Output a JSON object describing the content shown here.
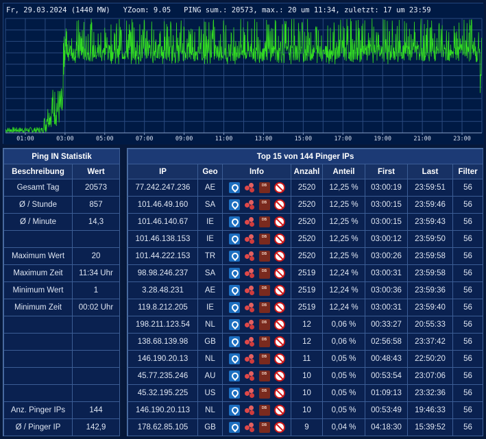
{
  "chart": {
    "header_text": "Fr, 29.03.2024 (1440 MW)   YZoom: 9.05   PING sum.: 20573, max.: 20 um 11:34, zuletzt: 17 um 23:59",
    "colors": {
      "background": "#001a44",
      "grid": "#2a4a80",
      "line": "#33dd22",
      "tick_label": "#d8e0f0"
    },
    "chart_data": {
      "type": "line",
      "title": "",
      "xlabel": "",
      "ylabel": "",
      "x_ticks": [
        "01:00",
        "03:00",
        "05:00",
        "07:00",
        "09:00",
        "11:00",
        "13:00",
        "15:00",
        "17:00",
        "19:00",
        "21:00",
        "23:00"
      ],
      "x_range_minutes": [
        0,
        1440
      ],
      "ylim": [
        0,
        20
      ],
      "grid": true,
      "series": [
        {
          "segments": [
            {
              "from": "00:00",
              "to": "01:55",
              "min": 0,
              "max": 1
            },
            {
              "from": "01:55",
              "to": "02:05",
              "min": 0,
              "max": 3
            },
            {
              "from": "02:05",
              "to": "02:20",
              "min": 1,
              "max": 5
            },
            {
              "from": "02:20",
              "to": "02:55",
              "min": 1,
              "max": 8
            },
            {
              "from": "03:00",
              "to": "23:55",
              "min": 12,
              "max": 20,
              "typical": 14
            },
            {
              "from": "23:55",
              "to": "23:59",
              "min": 2,
              "max": 17
            }
          ]
        }
      ]
    }
  },
  "stats": {
    "title": "Ping IN Statistik",
    "headers": [
      "Beschreibung",
      "Wert"
    ],
    "rows": [
      [
        "Gesamt Tag",
        "20573"
      ],
      [
        "Ø / Stunde",
        "857"
      ],
      [
        "Ø / Minute",
        "14,3"
      ],
      [
        "",
        ""
      ],
      [
        "Maximum Wert",
        "20"
      ],
      [
        "Maximum Zeit",
        "11:34 Uhr"
      ],
      [
        "Minimum Wert",
        "1"
      ],
      [
        "Minimum Zeit",
        "00:02 Uhr"
      ],
      [
        "",
        ""
      ],
      [
        "",
        ""
      ],
      [
        "",
        ""
      ],
      [
        "",
        ""
      ],
      [
        "",
        ""
      ],
      [
        "Anz. Pinger IPs",
        "144"
      ],
      [
        "Ø / Pinger IP",
        "142,9"
      ]
    ]
  },
  "pinger": {
    "title": "Top 15 von 144 Pinger IPs",
    "headers": [
      "IP",
      "Geo",
      "Info",
      "Anzahl",
      "Anteil",
      "First",
      "Last",
      "Filter"
    ],
    "info_icons": [
      "location-icon",
      "network-icon",
      "database-icon",
      "block-icon"
    ],
    "db_icon_text": "DB",
    "rows": [
      [
        "77.242.247.236",
        "AE",
        "2520",
        "12,25 %",
        "03:00:19",
        "23:59:51",
        "56"
      ],
      [
        "101.46.49.160",
        "SA",
        "2520",
        "12,25 %",
        "03:00:15",
        "23:59:46",
        "56"
      ],
      [
        "101.46.140.67",
        "IE",
        "2520",
        "12,25 %",
        "03:00:15",
        "23:59:43",
        "56"
      ],
      [
        "101.46.138.153",
        "IE",
        "2520",
        "12,25 %",
        "03:00:12",
        "23:59:50",
        "56"
      ],
      [
        "101.44.222.153",
        "TR",
        "2520",
        "12,25 %",
        "03:00:26",
        "23:59:58",
        "56"
      ],
      [
        "98.98.246.237",
        "SA",
        "2519",
        "12,24 %",
        "03:00:31",
        "23:59:58",
        "56"
      ],
      [
        "3.28.48.231",
        "AE",
        "2519",
        "12,24 %",
        "03:00:36",
        "23:59:36",
        "56"
      ],
      [
        "119.8.212.205",
        "IE",
        "2519",
        "12,24 %",
        "03:00:31",
        "23:59:40",
        "56"
      ],
      [
        "198.211.123.54",
        "NL",
        "12",
        "0,06 %",
        "00:33:27",
        "20:55:33",
        "56"
      ],
      [
        "138.68.139.98",
        "GB",
        "12",
        "0,06 %",
        "02:56:58",
        "23:37:42",
        "56"
      ],
      [
        "146.190.20.13",
        "NL",
        "11",
        "0,05 %",
        "00:48:43",
        "22:50:20",
        "56"
      ],
      [
        "45.77.235.246",
        "AU",
        "10",
        "0,05 %",
        "00:53:54",
        "23:07:06",
        "56"
      ],
      [
        "45.32.195.225",
        "US",
        "10",
        "0,05 %",
        "01:09:13",
        "23:32:36",
        "56"
      ],
      [
        "146.190.20.113",
        "NL",
        "10",
        "0,05 %",
        "00:53:49",
        "19:46:33",
        "56"
      ],
      [
        "178.62.85.105",
        "GB",
        "9",
        "0,04 %",
        "04:18:30",
        "15:39:52",
        "56"
      ]
    ]
  }
}
